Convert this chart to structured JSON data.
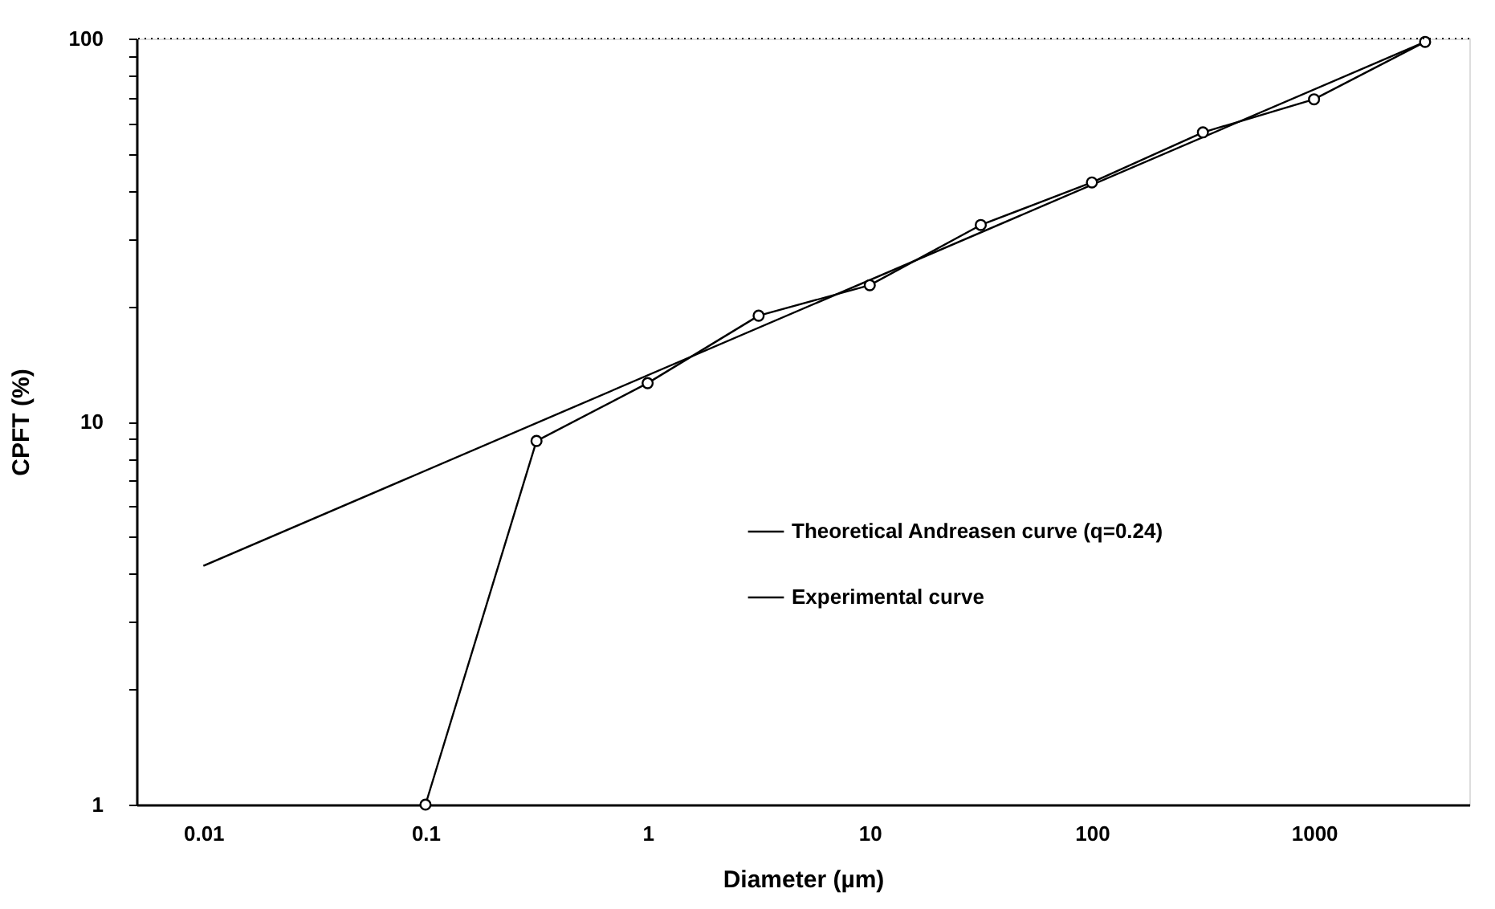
{
  "chart_data": {
    "type": "line",
    "xlabel": "Diameter (µm)",
    "ylabel": "CPFT (%)",
    "log": "xy",
    "xlim": [
      0.005,
      5000
    ],
    "ylim": [
      1,
      100
    ],
    "xticks": [
      0.01,
      0.1,
      1,
      10,
      100,
      1000
    ],
    "yticks": [
      1,
      {
        "value": 2,
        "label": null
      },
      {
        "value": 3,
        "label": null
      },
      {
        "value": 4,
        "label": null
      },
      {
        "value": 5,
        "label": null
      },
      {
        "value": 6,
        "label": null
      },
      {
        "value": 7,
        "label": null
      },
      {
        "value": 8,
        "label": null
      },
      {
        "value": 9,
        "label": null
      },
      10,
      {
        "value": 20,
        "label": null
      },
      {
        "value": 30,
        "label": null
      },
      {
        "value": 40,
        "label": null
      },
      {
        "value": 50,
        "label": null
      },
      {
        "value": 60,
        "label": null
      },
      {
        "value": 70,
        "label": null
      },
      {
        "value": 80,
        "label": null
      },
      {
        "value": 90,
        "label": null
      },
      100
    ],
    "grid": false,
    "legend": "right",
    "ref_lines": [
      {
        "axis": "y",
        "value": 100,
        "line_style": "dotted",
        "color": "#000000"
      }
    ],
    "series": [
      {
        "name": "Theoretical Andreasen curve (q=0.24)",
        "color": "#000000",
        "x": [
          0.01,
          3162
        ],
        "values": [
          4.2,
          98
        ]
      },
      {
        "name": "Experimental curve",
        "color": "#000000",
        "marker": "circle",
        "x": [
          0.1,
          0.316,
          1,
          3.16,
          10,
          31.6,
          100,
          316,
          1000,
          3162
        ],
        "values": [
          1,
          8.9,
          12.6,
          18.9,
          22.7,
          32.6,
          42.1,
          56.9,
          69.4,
          98
        ]
      }
    ]
  }
}
